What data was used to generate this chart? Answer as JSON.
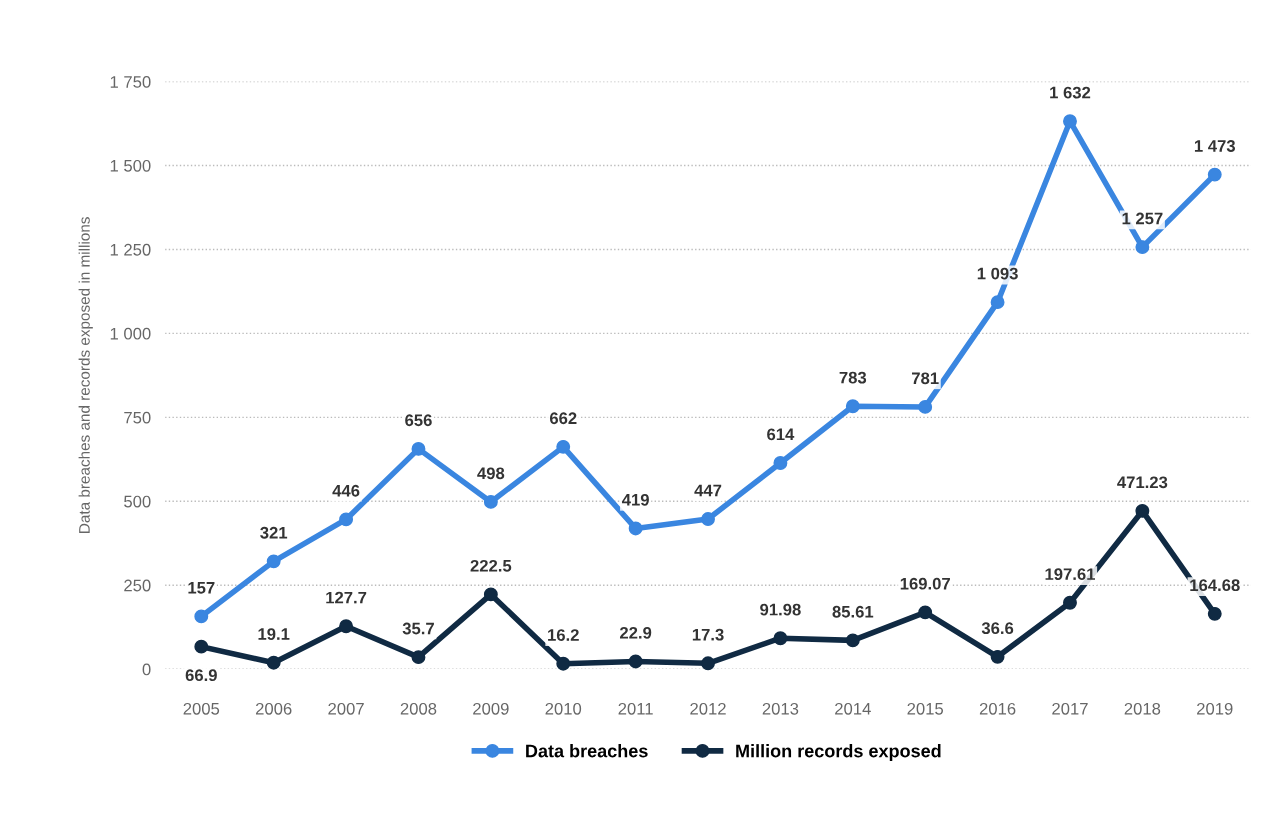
{
  "chart_data": {
    "type": "line",
    "ylabel": "Data breaches and records exposed in millions",
    "categories": [
      "2005",
      "2006",
      "2007",
      "2008",
      "2009",
      "2010",
      "2011",
      "2012",
      "2013",
      "2014",
      "2015",
      "2016",
      "2017",
      "2018",
      "2019"
    ],
    "series": [
      {
        "name": "Data breaches",
        "color": "#3a86e0",
        "values": [
          157,
          321,
          446,
          656,
          498,
          662,
          419,
          447,
          614,
          783,
          781,
          1093,
          1632,
          1257,
          1473
        ],
        "value_labels": [
          "157",
          "321",
          "446",
          "656",
          "498",
          "662",
          "419",
          "447",
          "614",
          "783",
          "781",
          "1 093",
          "1 632",
          "1 257",
          "1 473"
        ]
      },
      {
        "name": "Million records exposed",
        "color": "#102a43",
        "values": [
          66.9,
          19.1,
          127.7,
          35.7,
          222.5,
          16.2,
          22.9,
          17.3,
          91.98,
          85.61,
          169.07,
          36.6,
          197.61,
          471.23,
          164.68
        ],
        "value_labels": [
          "66.9",
          "19.1",
          "127.7",
          "35.7",
          "222.5",
          "16.2",
          "22.9",
          "17.3",
          "91.98",
          "85.61",
          "169.07",
          "36.6",
          "197.61",
          "471.23",
          "164.68"
        ]
      }
    ],
    "ylim": [
      0,
      1750
    ],
    "yticks": [
      0,
      250,
      500,
      750,
      {
        "value": 1000,
        "label": "1 000"
      },
      {
        "value": 1250,
        "label": "1 250"
      },
      {
        "value": 1500,
        "label": "1 500"
      },
      {
        "value": 1750,
        "label": "1 750"
      }
    ],
    "grid": "y",
    "legend": "bottom",
    "marker": "circle",
    "line_style": "solid"
  }
}
